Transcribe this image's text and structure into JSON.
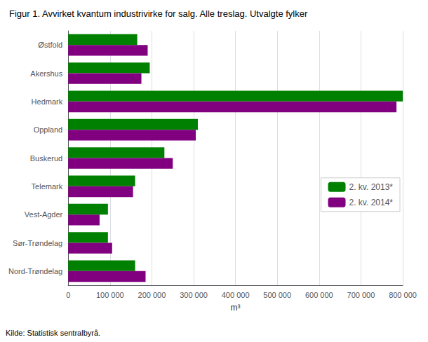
{
  "chart_data": {
    "type": "bar",
    "orientation": "horizontal",
    "title": "Figur 1. Avvirket kvantum industrivirke for salg. Alle treslag. Utvalgte fylker",
    "categories": [
      "Østfold",
      "Akershus",
      "Hedmark",
      "Oppland",
      "Buskerud",
      "Telemark",
      "Vest-Agder",
      "Sør-Trøndelag",
      "Nord-Trøndelag"
    ],
    "series": [
      {
        "name": "2. kv. 2013*",
        "color": "#008000",
        "values": [
          165000,
          195000,
          800000,
          310000,
          230000,
          160000,
          95000,
          95000,
          160000
        ]
      },
      {
        "name": "2. kv. 2014*",
        "color": "#800080",
        "values": [
          190000,
          175000,
          785000,
          305000,
          250000,
          155000,
          75000,
          105000,
          185000
        ]
      }
    ],
    "xlabel": "m³",
    "xlim": [
      0,
      800000
    ],
    "xticks": [
      0,
      {
        "value": 100000,
        "label": "100 000"
      },
      {
        "value": 200000,
        "label": "200 000"
      },
      {
        "value": 300000,
        "label": "300 000"
      },
      {
        "value": 400000,
        "label": "400 000"
      },
      {
        "value": 500000,
        "label": "500 000"
      },
      {
        "value": 600000,
        "label": "600 000"
      },
      {
        "value": 700000,
        "label": "700 000"
      },
      {
        "value": 800000,
        "label": "800 000"
      }
    ],
    "grid": true,
    "legend": "right",
    "annotation": "Kilde: Statistisk sentralbyrå."
  }
}
